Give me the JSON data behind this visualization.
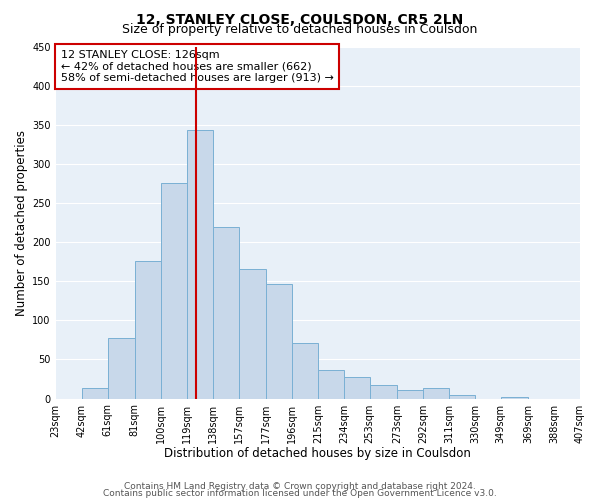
{
  "title": "12, STANLEY CLOSE, COULSDON, CR5 2LN",
  "subtitle": "Size of property relative to detached houses in Coulsdon",
  "xlabel": "Distribution of detached houses by size in Coulsdon",
  "ylabel": "Number of detached properties",
  "bar_color": "#c8d8ea",
  "bar_edge_color": "#7ab0d4",
  "background_color": "#e8f0f8",
  "bin_edges": [
    23,
    42,
    61,
    81,
    100,
    119,
    138,
    157,
    177,
    196,
    215,
    234,
    253,
    273,
    292,
    311,
    330,
    349,
    369,
    388,
    407
  ],
  "bin_labels": [
    "23sqm",
    "42sqm",
    "61sqm",
    "81sqm",
    "100sqm",
    "119sqm",
    "138sqm",
    "157sqm",
    "177sqm",
    "196sqm",
    "215sqm",
    "234sqm",
    "253sqm",
    "273sqm",
    "292sqm",
    "311sqm",
    "330sqm",
    "349sqm",
    "369sqm",
    "388sqm",
    "407sqm"
  ],
  "counts": [
    0,
    13,
    77,
    176,
    275,
    343,
    219,
    165,
    146,
    71,
    37,
    28,
    17,
    11,
    14,
    5,
    0,
    2,
    0,
    0
  ],
  "vline_x": 126,
  "vline_color": "#cc0000",
  "annotation_line1": "12 STANLEY CLOSE: 126sqm",
  "annotation_line2": "← 42% of detached houses are smaller (662)",
  "annotation_line3": "58% of semi-detached houses are larger (913) →",
  "annotation_box_color": "#ffffff",
  "annotation_box_edge_color": "#cc0000",
  "ylim": [
    0,
    450
  ],
  "yticks": [
    0,
    50,
    100,
    150,
    200,
    250,
    300,
    350,
    400,
    450
  ],
  "footer_line1": "Contains HM Land Registry data © Crown copyright and database right 2024.",
  "footer_line2": "Contains public sector information licensed under the Open Government Licence v3.0.",
  "grid_color": "#ffffff",
  "title_fontsize": 10,
  "subtitle_fontsize": 9,
  "axis_label_fontsize": 8.5,
  "tick_fontsize": 7,
  "annotation_fontsize": 8,
  "footer_fontsize": 6.5
}
